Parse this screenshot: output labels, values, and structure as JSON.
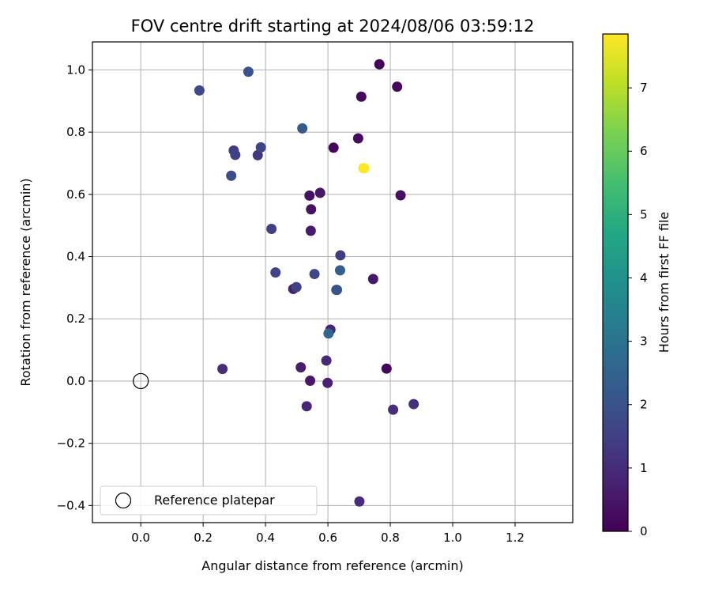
{
  "chart_data": {
    "type": "scatter",
    "title": "FOV centre drift starting at 2024/08/06 03:59:12",
    "xlabel": "Angular distance from reference (arcmin)",
    "ylabel": "Rotation from reference (arcmin)",
    "xlim": [
      -0.155,
      1.385
    ],
    "ylim": [
      -0.455,
      1.09
    ],
    "xticks": [
      0.0,
      0.2,
      0.4,
      0.6,
      0.8,
      1.0,
      1.2
    ],
    "xtick_labels": [
      "0.0",
      "0.2",
      "0.4",
      "0.6",
      "0.8",
      "1.0",
      "1.2"
    ],
    "yticks": [
      -0.4,
      -0.2,
      0.0,
      0.2,
      0.4,
      0.6,
      0.8,
      1.0
    ],
    "ytick_labels": [
      "−0.4",
      "−0.2",
      "0.0",
      "0.2",
      "0.4",
      "0.6",
      "0.8",
      "1.0"
    ],
    "grid": true,
    "colormap": "viridis",
    "colorbar": {
      "label": "Hours from first FF file",
      "range": [
        0,
        7.85
      ],
      "ticks": [
        0,
        1,
        2,
        3,
        4,
        5,
        6,
        7
      ],
      "tick_labels": [
        "0",
        "1",
        "2",
        "3",
        "4",
        "5",
        "6",
        "7"
      ]
    },
    "legend": {
      "placement": "lower-left",
      "entries": [
        {
          "label": "Reference platepar",
          "marker": "open-circle"
        }
      ]
    },
    "reference_point": {
      "x": 0.0,
      "y": 0.0
    },
    "points": [
      {
        "x": 0.765,
        "y": 1.018,
        "hours": 0.05
      },
      {
        "x": 0.822,
        "y": 0.946,
        "hours": 0.15
      },
      {
        "x": 0.707,
        "y": 0.914,
        "hours": 0.2
      },
      {
        "x": 0.697,
        "y": 0.78,
        "hours": 0.25
      },
      {
        "x": 0.618,
        "y": 0.75,
        "hours": 0.1
      },
      {
        "x": 0.833,
        "y": 0.597,
        "hours": 0.3
      },
      {
        "x": 0.541,
        "y": 0.596,
        "hours": 0.35
      },
      {
        "x": 0.575,
        "y": 0.605,
        "hours": 0.5
      },
      {
        "x": 0.546,
        "y": 0.552,
        "hours": 0.4
      },
      {
        "x": 0.545,
        "y": 0.483,
        "hours": 0.6
      },
      {
        "x": 0.745,
        "y": 0.328,
        "hours": 0.55
      },
      {
        "x": 0.489,
        "y": 0.296,
        "hours": 0.7
      },
      {
        "x": 0.608,
        "y": 0.165,
        "hours": 0.8
      },
      {
        "x": 0.513,
        "y": 0.044,
        "hours": 0.65
      },
      {
        "x": 0.595,
        "y": 0.066,
        "hours": 0.95
      },
      {
        "x": 0.788,
        "y": 0.04,
        "hours": 0.1
      },
      {
        "x": 0.543,
        "y": 0.001,
        "hours": 0.5
      },
      {
        "x": 0.599,
        "y": -0.006,
        "hours": 0.75
      },
      {
        "x": 0.532,
        "y": -0.081,
        "hours": 0.9
      },
      {
        "x": 0.809,
        "y": -0.092,
        "hours": 1.05
      },
      {
        "x": 0.875,
        "y": -0.074,
        "hours": 1.1
      },
      {
        "x": 0.262,
        "y": 0.039,
        "hours": 1.05
      },
      {
        "x": 0.701,
        "y": -0.387,
        "hours": 1.0
      },
      {
        "x": 0.345,
        "y": 0.994,
        "hours": 2.0
      },
      {
        "x": 0.188,
        "y": 0.934,
        "hours": 1.75
      },
      {
        "x": 0.518,
        "y": 0.812,
        "hours": 2.2
      },
      {
        "x": 0.385,
        "y": 0.751,
        "hours": 1.6
      },
      {
        "x": 0.298,
        "y": 0.741,
        "hours": 1.35
      },
      {
        "x": 0.303,
        "y": 0.727,
        "hours": 1.5
      },
      {
        "x": 0.375,
        "y": 0.726,
        "hours": 1.25
      },
      {
        "x": 0.29,
        "y": 0.66,
        "hours": 1.8
      },
      {
        "x": 0.714,
        "y": 0.684,
        "hours": 7.5
      },
      {
        "x": 0.716,
        "y": 0.684,
        "hours": 7.85
      },
      {
        "x": 0.419,
        "y": 0.489,
        "hours": 1.5
      },
      {
        "x": 0.64,
        "y": 0.404,
        "hours": 1.4
      },
      {
        "x": 0.432,
        "y": 0.349,
        "hours": 1.6
      },
      {
        "x": 0.557,
        "y": 0.344,
        "hours": 1.7
      },
      {
        "x": 0.639,
        "y": 0.356,
        "hours": 2.4
      },
      {
        "x": 0.499,
        "y": 0.302,
        "hours": 1.5
      },
      {
        "x": 0.627,
        "y": 0.293,
        "hours": 2.1
      },
      {
        "x": 0.629,
        "y": 0.293,
        "hours": 2.05
      },
      {
        "x": 0.602,
        "y": 0.153,
        "hours": 2.6
      }
    ]
  }
}
